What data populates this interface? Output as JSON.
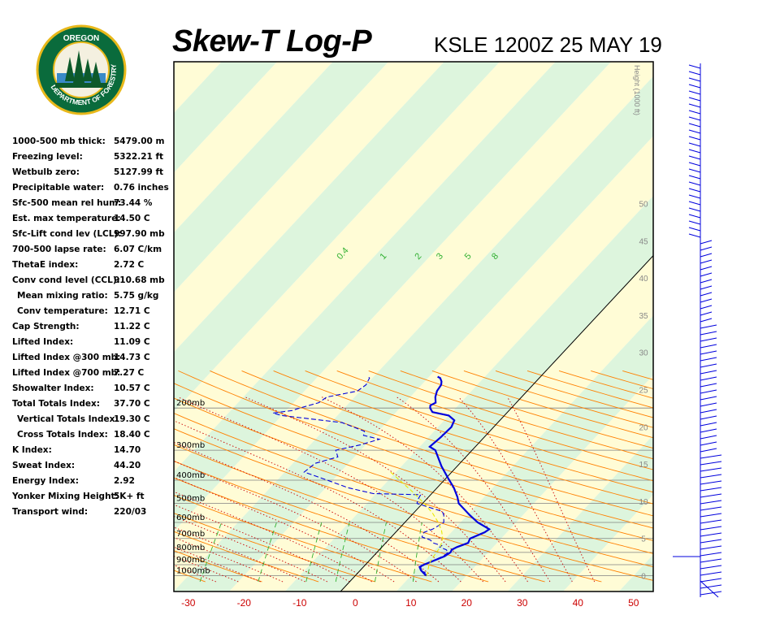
{
  "header": {
    "title": "Skew-T Log-P",
    "station_time": "KSLE 1200Z 25 MAY 19",
    "logo_top_text": "OREGON",
    "logo_ring_text": "DEPARTMENT OF FORESTRY"
  },
  "stats": [
    {
      "label": "1000-500 mb thick:",
      "value": "5479.00 m",
      "indent": false
    },
    {
      "label": "Freezing level:",
      "value": "5322.21 ft",
      "indent": false
    },
    {
      "label": "Wetbulb zero:",
      "value": "5127.99 ft",
      "indent": false
    },
    {
      "label": "Precipitable water:",
      "value": "0.76 inches",
      "indent": false
    },
    {
      "label": "Sfc-500 mean rel hum:",
      "value": "73.44 %",
      "indent": false
    },
    {
      "label": "Est. max temperature:",
      "value": "14.50 C",
      "indent": false
    },
    {
      "label": "Sfc-Lift cond lev (LCL):",
      "value": "997.90 mb",
      "indent": false
    },
    {
      "label": "700-500 lapse rate:",
      "value": "6.07 C/km",
      "indent": false
    },
    {
      "label": "ThetaE index:",
      "value": "2.72 C",
      "indent": false
    },
    {
      "label": "Conv cond level (CCL):",
      "value": "910.68 mb",
      "indent": false
    },
    {
      "label": "Mean mixing ratio:",
      "value": "5.75 g/kg",
      "indent": true
    },
    {
      "label": "Conv temperature:",
      "value": "12.71 C",
      "indent": true
    },
    {
      "label": "Cap Strength:",
      "value": "11.22 C",
      "indent": false
    },
    {
      "label": "Lifted Index:",
      "value": "11.09 C",
      "indent": false
    },
    {
      "label": "Lifted Index @300 mb:",
      "value": "14.73 C",
      "indent": false
    },
    {
      "label": "Lifted Index @700 mb:",
      "value": "7.27 C",
      "indent": false
    },
    {
      "label": "Showalter Index:",
      "value": "10.57 C",
      "indent": false
    },
    {
      "label": "Total Totals Index:",
      "value": "37.70 C",
      "indent": false
    },
    {
      "label": "Vertical Totals Index:",
      "value": "19.30 C",
      "indent": true
    },
    {
      "label": "Cross Totals Index:",
      "value": "18.40 C",
      "indent": true
    },
    {
      "label": "K Index:",
      "value": "14.70",
      "indent": false
    },
    {
      "label": "Sweat Index:",
      "value": "44.20",
      "indent": false
    },
    {
      "label": "Energy Index:",
      "value": "2.92",
      "indent": false
    },
    {
      "label": "Yonker Mixing Height:",
      "value": "5K+ ft",
      "indent": false
    },
    {
      "label": "Transport wind:",
      "value": "220/03",
      "indent": false
    }
  ],
  "colors": {
    "temperature": "#0000dd",
    "dewpoint": "#0000dd",
    "parcel": "#e8e800",
    "isotherm": "#000000",
    "isobar": "#808080",
    "dry_adiabat": "#ff8000",
    "moist_adiabat": "#cc0000",
    "mixing_ratio": "#30b030",
    "band_yellow": "#fffcd6",
    "band_green": "#ddf5dd",
    "x_tick_labels": "#cc0000",
    "height_labels": "#888888"
  },
  "chart_data": {
    "type": "line",
    "xlabel": "",
    "ylabel": "",
    "x_ticks": [
      "-30",
      "-20",
      "-10",
      "0",
      "10",
      "20",
      "30",
      "40",
      "50"
    ],
    "x_tick_values": [
      -30,
      -20,
      -10,
      0,
      10,
      20,
      30,
      40,
      50
    ],
    "xlim": [
      -33,
      53
    ],
    "ylim_mb": [
      1050,
      145
    ],
    "y_scale": "log-pressure",
    "pressure_ticks": [
      {
        "label": "200mb",
        "p": 200
      },
      {
        "label": "300mb",
        "p": 300
      },
      {
        "label": "400mb",
        "p": 400
      },
      {
        "label": "500mb",
        "p": 500
      },
      {
        "label": "600mb",
        "p": 600
      },
      {
        "label": "700mb",
        "p": 700
      },
      {
        "label": "800mb",
        "p": 800
      },
      {
        "label": "900mb",
        "p": 900
      },
      {
        "label": "1000mb",
        "p": 1000
      }
    ],
    "height_axis_title": "Height (1000 ft)",
    "height_ticks": [
      {
        "label": "0",
        "ft": 0
      },
      {
        "label": "5",
        "ft": 5000
      },
      {
        "label": "10",
        "ft": 10000
      },
      {
        "label": "15",
        "ft": 15000
      },
      {
        "label": "20",
        "ft": 20000
      },
      {
        "label": "25",
        "ft": 25000
      },
      {
        "label": "30",
        "ft": 30000
      },
      {
        "label": "35",
        "ft": 35000
      },
      {
        "label": "40",
        "ft": 40000
      },
      {
        "label": "45",
        "ft": 45000
      },
      {
        "label": "50",
        "ft": 50000
      }
    ],
    "mixing_ratio_labels": [
      "0.4",
      "1",
      "2",
      "3",
      "5",
      "8"
    ],
    "mixing_ratio_values": [
      0.4,
      1,
      2,
      3,
      5,
      8
    ],
    "grid": true,
    "series": [
      {
        "key": "temperature",
        "style": "solid",
        "points": [
          [
            1000,
            12.8
          ],
          [
            980,
            12.0
          ],
          [
            950,
            10.9
          ],
          [
            920,
            10.1
          ],
          [
            900,
            10.5
          ],
          [
            830,
            12.8
          ],
          [
            800,
            13.2
          ],
          [
            780,
            13.0
          ],
          [
            760,
            13.5
          ],
          [
            730,
            14.8
          ],
          [
            700,
            14.4
          ],
          [
            660,
            16.0
          ],
          [
            640,
            16.3
          ],
          [
            600,
            13.1
          ],
          [
            560,
            10.5
          ],
          [
            500,
            6.5
          ],
          [
            470,
            5.2
          ],
          [
            430,
            3.0
          ],
          [
            390,
            0.2
          ],
          [
            350,
            -2.8
          ],
          [
            300,
            -6.6
          ],
          [
            290,
            -8.2
          ],
          [
            265,
            -7.8
          ],
          [
            240,
            -7.6
          ],
          [
            225,
            -8.2
          ],
          [
            215,
            -10.0
          ],
          [
            208,
            -13.5
          ],
          [
            200,
            -14.6
          ],
          [
            195,
            -15.0
          ],
          [
            190,
            -14.5
          ],
          [
            180,
            -15.5
          ],
          [
            170,
            -16.2
          ],
          [
            160,
            -16.5
          ],
          [
            155,
            -17.0
          ],
          [
            150,
            -17.8
          ],
          [
            148,
            -18.5
          ]
        ]
      },
      {
        "key": "dewpoint",
        "style": "dashed",
        "points": [
          [
            1000,
            12.5
          ],
          [
            970,
            12.0
          ],
          [
            950,
            11.0
          ],
          [
            920,
            10.3
          ],
          [
            900,
            10.5
          ],
          [
            830,
            12.5
          ],
          [
            800,
            12.8
          ],
          [
            780,
            12.0
          ],
          [
            760,
            10.4
          ],
          [
            750,
            10.5
          ],
          [
            730,
            8.5
          ],
          [
            710,
            7.5
          ],
          [
            690,
            5.5
          ],
          [
            660,
            5.1
          ],
          [
            640,
            6.1
          ],
          [
            600,
            7.0
          ],
          [
            560,
            5.8
          ],
          [
            540,
            4.9
          ],
          [
            500,
            -1.0
          ],
          [
            480,
            -1.5
          ],
          [
            460,
            -1.8
          ],
          [
            455,
            -10.5
          ],
          [
            430,
            -16.0
          ],
          [
            400,
            -21.0
          ],
          [
            370,
            -26.5
          ],
          [
            340,
            -26.0
          ],
          [
            320,
            -23.0
          ],
          [
            300,
            -24.5
          ],
          [
            285,
            -21.0
          ],
          [
            270,
            -18.5
          ],
          [
            260,
            -22.0
          ],
          [
            250,
            -22.5
          ],
          [
            230,
            -28.0
          ],
          [
            215,
            -40.0
          ],
          [
            210,
            -42.0
          ],
          [
            205,
            -39.0
          ],
          [
            200,
            -38.0
          ],
          [
            190,
            -35.5
          ],
          [
            180,
            -35.0
          ],
          [
            170,
            -30.5
          ],
          [
            160,
            -30.0
          ],
          [
            150,
            -30.5
          ],
          [
            148,
            -31.0
          ]
        ]
      },
      {
        "key": "parcel",
        "style": "solid",
        "points": [
          [
            1000,
            12.8
          ],
          [
            980,
            12.6
          ],
          [
            900,
            11.4
          ],
          [
            850,
            10.9
          ],
          [
            800,
            10.7
          ],
          [
            760,
            10.5
          ],
          [
            700,
            9.5
          ],
          [
            650,
            8.0
          ],
          [
            600,
            6.0
          ],
          [
            550,
            3.5
          ],
          [
            500,
            0.3
          ],
          [
            450,
            -3.5
          ],
          [
            400,
            -8.0
          ],
          [
            370,
            -11.0
          ]
        ]
      }
    ]
  }
}
